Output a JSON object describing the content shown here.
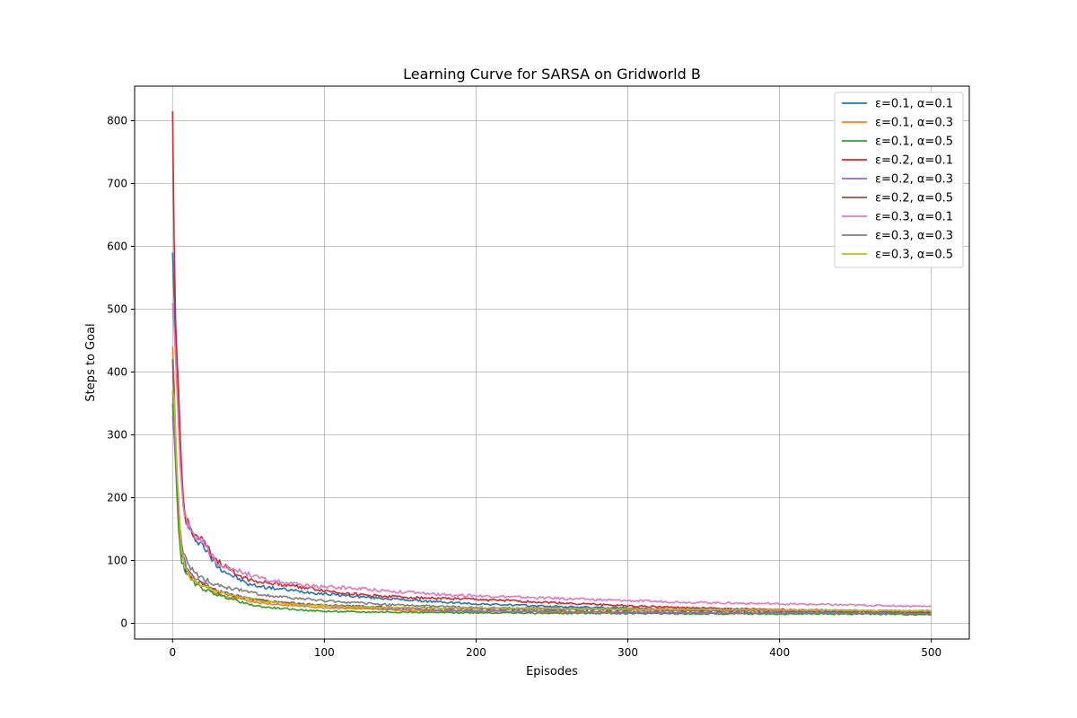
{
  "chart_data": {
    "type": "line",
    "title": "Learning Curve for SARSA on Gridworld B",
    "xlabel": "Episodes",
    "ylabel": "Steps to Goal",
    "xlim": [
      -25,
      525
    ],
    "ylim": [
      -25,
      855
    ],
    "xticks": [
      0,
      100,
      200,
      300,
      400,
      500
    ],
    "yticks": [
      0,
      100,
      200,
      300,
      400,
      500,
      600,
      700,
      800
    ],
    "grid": true,
    "legend_position": "top-right",
    "x": [
      0,
      1,
      2,
      3,
      4,
      5,
      6,
      7,
      8,
      10,
      12,
      15,
      20,
      25,
      30,
      40,
      50,
      60,
      80,
      100,
      125,
      150,
      175,
      200,
      250,
      300,
      350,
      400,
      450,
      500
    ],
    "series": [
      {
        "name": "ε=0.1, α=0.1",
        "color": "#1f77b4",
        "values": [
          590,
          520,
          440,
          390,
          340,
          260,
          220,
          190,
          170,
          155,
          145,
          135,
          125,
          105,
          90,
          75,
          62,
          58,
          52,
          47,
          42,
          38,
          34,
          31,
          27,
          24,
          21,
          19,
          17,
          16
        ]
      },
      {
        "name": "ε=0.1, α=0.3",
        "color": "#ff7f0e",
        "values": [
          440,
          380,
          300,
          240,
          180,
          140,
          120,
          105,
          95,
          85,
          78,
          68,
          60,
          52,
          46,
          40,
          36,
          32,
          28,
          25,
          23,
          21,
          20,
          19,
          18,
          17,
          17,
          16,
          16,
          15
        ]
      },
      {
        "name": "ε=0.1, α=0.5",
        "color": "#2ca02c",
        "values": [
          350,
          300,
          250,
          200,
          150,
          120,
          100,
          92,
          85,
          78,
          70,
          62,
          55,
          50,
          45,
          38,
          30,
          26,
          22,
          19,
          18,
          18,
          17,
          17,
          16,
          16,
          15,
          15,
          15,
          14
        ]
      },
      {
        "name": "ε=0.2, α=0.1",
        "color": "#d62728",
        "values": [
          815,
          610,
          480,
          420,
          360,
          300,
          240,
          200,
          175,
          160,
          150,
          140,
          130,
          112,
          98,
          82,
          70,
          65,
          60,
          52,
          45,
          42,
          40,
          38,
          33,
          28,
          24,
          22,
          20,
          18
        ]
      },
      {
        "name": "ε=0.2, α=0.3",
        "color": "#9467bd",
        "values": [
          330,
          300,
          260,
          220,
          180,
          150,
          125,
          110,
          98,
          88,
          80,
          72,
          65,
          58,
          52,
          45,
          40,
          36,
          31,
          28,
          25,
          23,
          21,
          20,
          19,
          18,
          17,
          17,
          16,
          16
        ]
      },
      {
        "name": "ε=0.2, α=0.5",
        "color": "#8c564b",
        "values": [
          420,
          360,
          290,
          230,
          180,
          140,
          115,
          100,
          90,
          82,
          75,
          68,
          62,
          56,
          50,
          44,
          40,
          36,
          32,
          29,
          27,
          25,
          24,
          23,
          22,
          21,
          20,
          20,
          19,
          18
        ]
      },
      {
        "name": "ε=0.3, α=0.1",
        "color": "#e377c2",
        "values": [
          510,
          470,
          420,
          370,
          310,
          260,
          215,
          185,
          168,
          158,
          150,
          142,
          128,
          110,
          96,
          86,
          78,
          70,
          62,
          58,
          55,
          50,
          46,
          44,
          40,
          36,
          33,
          31,
          29,
          27
        ]
      },
      {
        "name": "ε=0.3, α=0.3",
        "color": "#7f7f7f",
        "values": [
          370,
          330,
          280,
          230,
          190,
          155,
          130,
          115,
          105,
          95,
          88,
          80,
          72,
          66,
          60,
          55,
          50,
          45,
          40,
          36,
          32,
          29,
          27,
          25,
          24,
          23,
          22,
          21,
          20,
          20
        ]
      },
      {
        "name": "ε=0.3, α=0.5",
        "color": "#bcbd22",
        "values": [
          370,
          360,
          300,
          240,
          190,
          150,
          120,
          102,
          90,
          80,
          72,
          66,
          60,
          55,
          50,
          44,
          39,
          35,
          31,
          28,
          26,
          25,
          24,
          24,
          23,
          22,
          22,
          21,
          21,
          20
        ]
      }
    ]
  }
}
